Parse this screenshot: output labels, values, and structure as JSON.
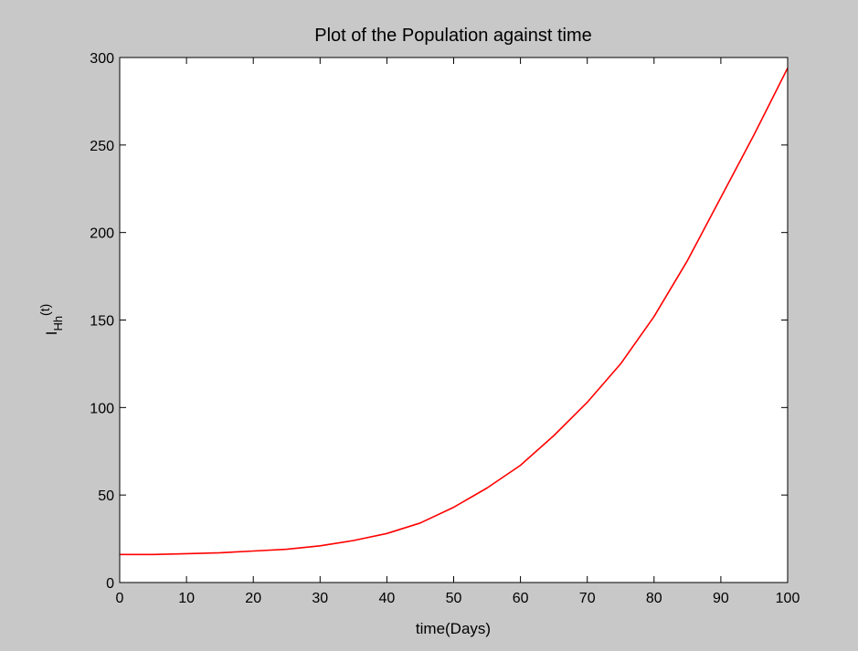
{
  "figure": {
    "background": "#c8c8c8"
  },
  "chart_data": {
    "type": "line",
    "title": "Plot of the Population against time",
    "xlabel": "time(Days)",
    "ylabel": {
      "base": "I",
      "subscript": "Hh",
      "suffix": "(t)"
    },
    "xlim": [
      0,
      100
    ],
    "ylim": [
      0,
      300
    ],
    "xticks": [
      0,
      10,
      20,
      30,
      40,
      50,
      60,
      70,
      80,
      90,
      100
    ],
    "yticks": [
      0,
      50,
      100,
      150,
      200,
      250,
      300
    ],
    "grid": false,
    "legend": "none",
    "series": [
      {
        "color": "#ff0000",
        "x": [
          0,
          5,
          10,
          15,
          20,
          25,
          30,
          35,
          40,
          45,
          50,
          55,
          60,
          65,
          70,
          75,
          80,
          85,
          90,
          95,
          100
        ],
        "y": [
          16,
          16,
          16.5,
          17,
          18,
          19,
          21,
          24,
          28,
          34,
          43,
          54,
          67,
          84,
          103,
          125,
          152,
          184,
          220,
          256,
          294
        ]
      }
    ]
  }
}
